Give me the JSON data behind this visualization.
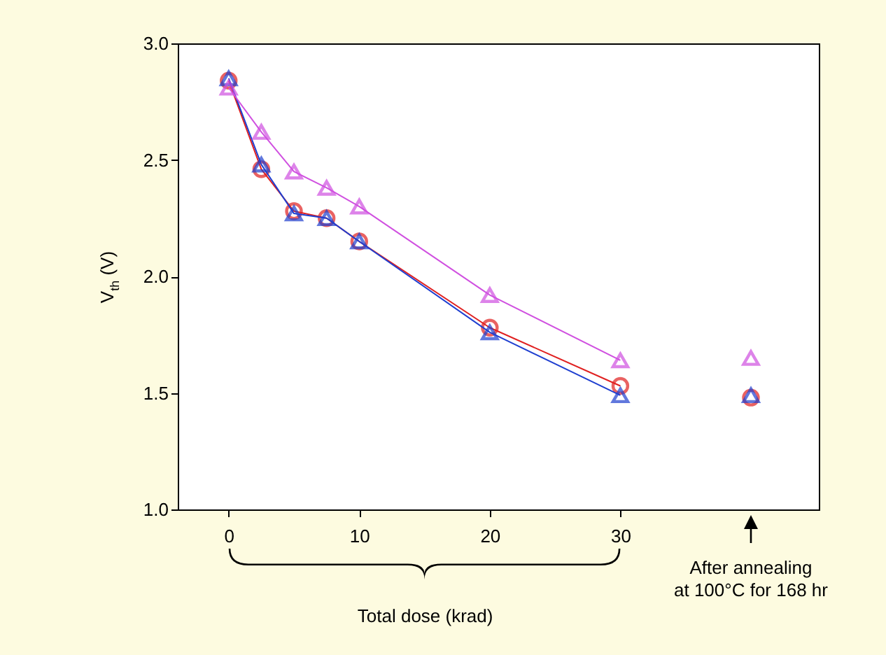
{
  "chart_data": {
    "type": "line",
    "xlabel": "Total dose (krad)",
    "ylabel": "V$_{th}$ (V)",
    "xlim": [
      -3.9,
      45.2
    ],
    "xticks": [
      0,
      10,
      20,
      30
    ],
    "ylim": [
      1.0,
      3.0
    ],
    "yticks": [
      {
        "value": 1.0,
        "label": "1.0"
      },
      1.5,
      {
        "value": 2.0,
        "label": "2.0"
      },
      2.5,
      {
        "value": 3.0,
        "label": "3.0"
      }
    ],
    "grid": false,
    "legend": false,
    "annotations": [
      "After annealing\nat 100°C for 168 hr"
    ],
    "series": [
      {
        "type": "line",
        "marker": "circle",
        "color": "#e02020",
        "x": [
          0,
          2.5,
          5,
          7.5,
          10,
          20,
          30
        ],
        "values": [
          2.84,
          2.46,
          2.28,
          2.25,
          2.15,
          1.78,
          1.53
        ]
      },
      {
        "type": "line",
        "marker": "triangle",
        "color": "#1f3fd0",
        "x": [
          0,
          2.5,
          5,
          7.5,
          10,
          20,
          30
        ],
        "values": [
          2.85,
          2.48,
          2.27,
          2.25,
          2.15,
          1.76,
          1.49
        ]
      },
      {
        "type": "line",
        "marker": "triangle",
        "color": "#d050e0",
        "x": [
          0,
          2.5,
          5,
          7.5,
          10,
          20,
          30
        ],
        "values": [
          2.81,
          2.62,
          2.45,
          2.38,
          2.3,
          1.92,
          1.64
        ]
      },
      {
        "type": "scatter",
        "marker": "circle",
        "color": "#e02020",
        "x": [
          40
        ],
        "values": [
          1.48
        ]
      },
      {
        "type": "scatter",
        "marker": "triangle",
        "color": "#1f3fd0",
        "x": [
          40
        ],
        "values": [
          1.49
        ]
      },
      {
        "type": "scatter",
        "marker": "triangle",
        "color": "#d050e0",
        "x": [
          40
        ],
        "values": [
          1.65
        ]
      }
    ]
  }
}
